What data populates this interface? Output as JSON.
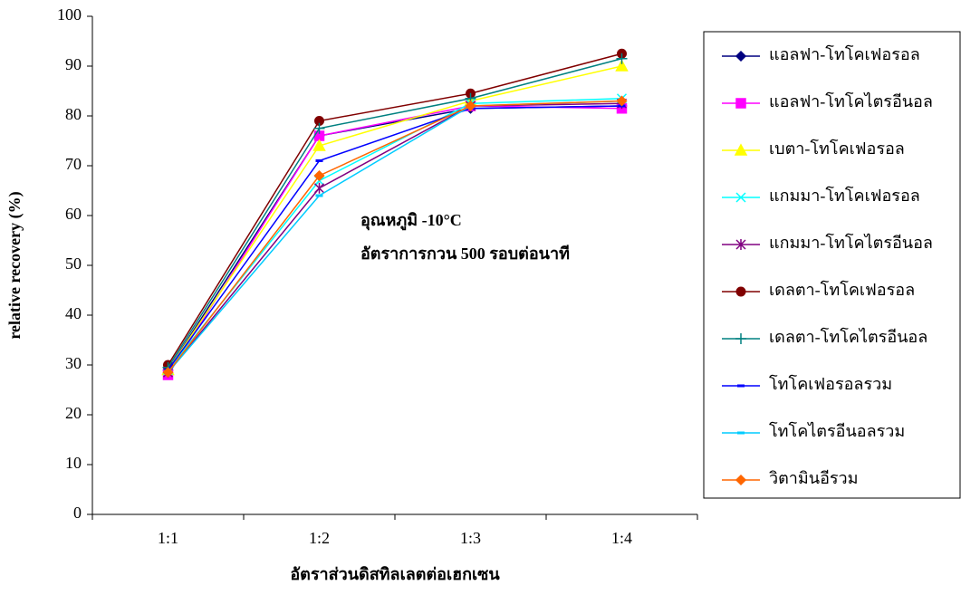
{
  "chart_data": {
    "type": "line",
    "x_label": "อัตราส่วนดิสทิลเลตต่อเฮกเซน",
    "y_label": "relative recovery (%)",
    "annotations": [
      "อุณหภูมิ -10°C",
      "อัตราการกวน 500 รอบต่อนาที"
    ],
    "categories": [
      "1:1",
      "1:2",
      "1:3",
      "1:4"
    ],
    "ylim": [
      0,
      100
    ],
    "yticks": [
      0,
      10,
      20,
      30,
      40,
      50,
      60,
      70,
      80,
      90,
      100
    ],
    "grid": false,
    "legend": "right",
    "series": [
      {
        "name": "แอลฟา-โทโคเฟอรอล",
        "color": "#000080",
        "marker": "diamond",
        "values": [
          29,
          76,
          81.5,
          82
        ]
      },
      {
        "name": "แอลฟา-โทโคไตรอีนอล",
        "color": "#ff00ff",
        "marker": "square",
        "values": [
          28,
          76,
          82,
          81.5
        ]
      },
      {
        "name": "เบตา-โทโคเฟอรอล",
        "color": "#ffff00",
        "marker": "triangle",
        "values": [
          29,
          74,
          83,
          90
        ]
      },
      {
        "name": "แกมมา-โทโคเฟอรอล",
        "color": "#00ffff",
        "marker": "x",
        "values": [
          29,
          67,
          82.5,
          83.5
        ]
      },
      {
        "name": "แกมมา-โทโคไตรอีนอล",
        "color": "#800080",
        "marker": "star",
        "values": [
          28.5,
          65.5,
          82,
          82.5
        ]
      },
      {
        "name": "เดลตา-โทโคเฟอรอล",
        "color": "#800000",
        "marker": "circle",
        "values": [
          30,
          79,
          84.5,
          92.5
        ]
      },
      {
        "name": "เดลตา-โทโคไตรอีนอล",
        "color": "#008080",
        "marker": "plus",
        "values": [
          29.5,
          77.5,
          83.5,
          91.5
        ]
      },
      {
        "name": "โทโคเฟอรอลรวม",
        "color": "#0000ff",
        "marker": "dash",
        "values": [
          29,
          71,
          81.5,
          82
        ]
      },
      {
        "name": "โทโคไตรอีนอลรวม",
        "color": "#00ccff",
        "marker": "dash",
        "values": [
          28.5,
          64,
          82,
          83
        ]
      },
      {
        "name": "วิตามินอีรวม",
        "color": "#ff6600",
        "marker": "diamond",
        "values": [
          28.5,
          68,
          82,
          83
        ]
      }
    ]
  }
}
